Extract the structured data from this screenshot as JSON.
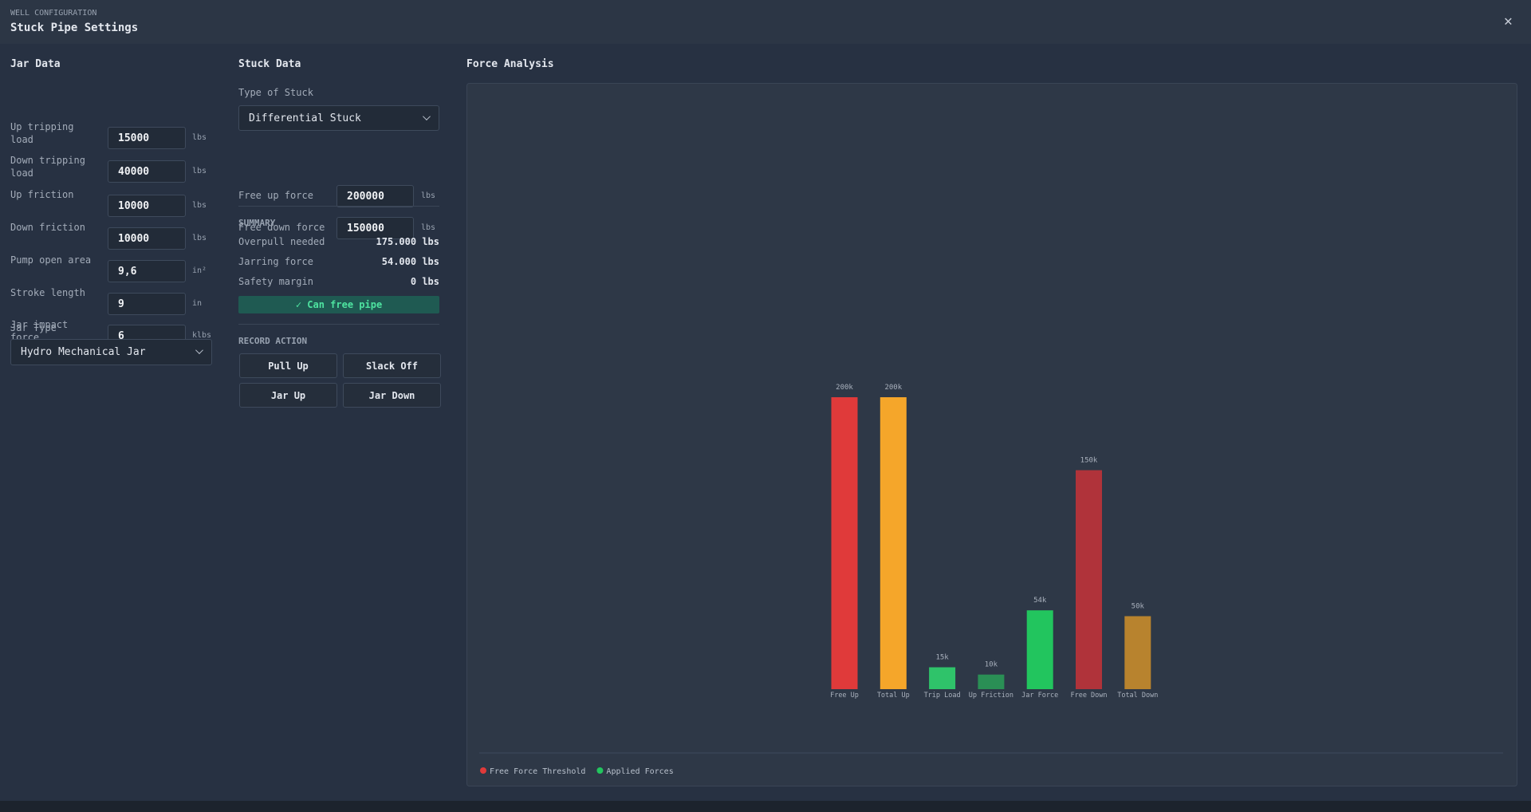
{
  "header": {
    "kicker": "WELL CONFIGURATION",
    "title": "Stuck Pipe Settings"
  },
  "jar_data": {
    "title": "Jar Data",
    "fields": [
      {
        "label": "Up tripping load",
        "value": "15000",
        "unit": "lbs"
      },
      {
        "label": "Down tripping load",
        "value": "40000",
        "unit": "lbs"
      },
      {
        "label": "Up friction",
        "value": "10000",
        "unit": "lbs"
      },
      {
        "label": "Down friction",
        "value": "10000",
        "unit": "lbs"
      },
      {
        "label": "Pump open area",
        "value": "9,6",
        "unit": "in²"
      },
      {
        "label": "Stroke length",
        "value": "9",
        "unit": "in"
      },
      {
        "label": "Jar impact force",
        "value": "6",
        "unit": "klbs"
      }
    ],
    "jar_type_label": "Jar Type",
    "jar_type": "Hydro Mechanical Jar"
  },
  "stuck_data": {
    "title": "Stuck Data",
    "type_label": "Type of Stuck",
    "type": "Differential Stuck",
    "fields": [
      {
        "label": "Free up force",
        "value": "200000",
        "unit": "lbs"
      },
      {
        "label": "Free down force",
        "value": "150000",
        "unit": "lbs"
      }
    ],
    "summary_title": "SUMMARY",
    "summary": [
      {
        "label": "Overpull needed",
        "value": "175.000 lbs"
      },
      {
        "label": "Jarring force",
        "value": "54.000 lbs"
      },
      {
        "label": "Safety margin",
        "value": "0 lbs"
      }
    ],
    "status": "✓ Can free pipe",
    "record_title": "RECORD ACTION",
    "actions": [
      "Pull Up",
      "Slack Off",
      "Jar Up",
      "Jar Down"
    ]
  },
  "chart_data": {
    "type": "bar",
    "title": "Force Analysis",
    "categories": [
      "Free Up",
      "Total Up",
      "Trip Load",
      "Up Friction",
      "Jar Force",
      "Free Down",
      "Total Down"
    ],
    "values": [
      200000,
      200000,
      15000,
      10000,
      54000,
      150000,
      50000
    ],
    "value_labels": [
      "200k",
      "200k",
      "15k",
      "10k",
      "54k",
      "150k",
      "50k"
    ],
    "colors": [
      "#e03a3a",
      "#f5a62a",
      "#2fc36a",
      "#2a8f55",
      "#22c55e",
      "#b0333a",
      "#b8832e"
    ],
    "legend": [
      {
        "name": "Free Force Threshold",
        "color": "#e03a3a"
      },
      {
        "name": "Applied Forces",
        "color": "#22c55e"
      }
    ]
  }
}
